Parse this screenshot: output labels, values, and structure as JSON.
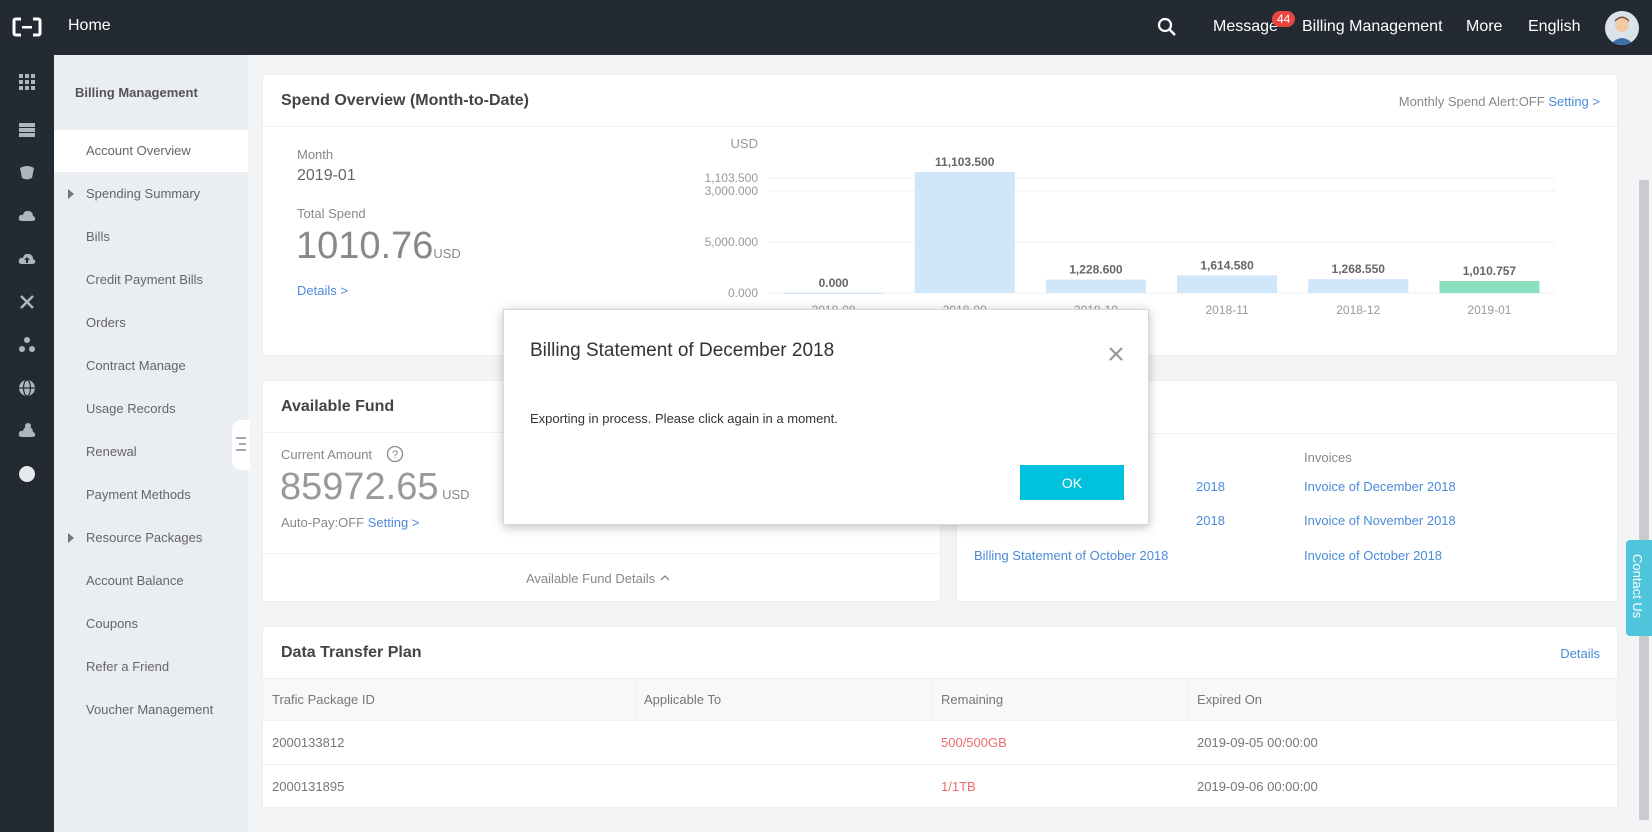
{
  "topbar": {
    "home": "Home",
    "message": "Message",
    "message_count": "44",
    "billing": "Billing Management",
    "more": "More",
    "language": "English"
  },
  "sidebar": {
    "title": "Billing Management",
    "items": [
      {
        "label": "Account Overview"
      },
      {
        "label": "Spending Summary"
      },
      {
        "label": "Bills"
      },
      {
        "label": "Credit Payment Bills"
      },
      {
        "label": "Orders"
      },
      {
        "label": "Contract Manage"
      },
      {
        "label": "Usage Records"
      },
      {
        "label": "Renewal"
      },
      {
        "label": "Payment Methods"
      },
      {
        "label": "Resource Packages"
      },
      {
        "label": "Account Balance"
      },
      {
        "label": "Coupons"
      },
      {
        "label": "Refer a Friend"
      },
      {
        "label": "Voucher Management"
      }
    ]
  },
  "spend": {
    "title": "Spend Overview (Month-to-Date)",
    "alert_label": "Monthly Spend Alert:OFF",
    "alert_setting": "Setting >",
    "month_label": "Month",
    "month_value": "2019-01",
    "total_label": "Total Spend",
    "total_value": "1010.76",
    "total_unit": "USD",
    "details": "Details >"
  },
  "chart_data": {
    "type": "bar",
    "ylabel": "USD",
    "y_ticks": [
      "0.000",
      "5,000.000",
      "3,000.000",
      "1,103.500"
    ],
    "categories": [
      "2018-08",
      "2018-09",
      "2018-10",
      "2018-11",
      "2018-12",
      "2019-01"
    ],
    "values": [
      0.0,
      11103.5,
      1228.6,
      1614.58,
      1268.55,
      1010.757
    ],
    "value_labels": [
      "0.000",
      "11,103.500",
      "1,228.600",
      "1,614.580",
      "1,268.550",
      "1,010.757"
    ],
    "colors": [
      "#cfe6fb",
      "#cfe6fb",
      "#cfe6fb",
      "#cfe6fb",
      "#cfe6fb",
      "#8be0c0"
    ],
    "ylim": [
      0,
      11103.5
    ]
  },
  "fund": {
    "title": "Available Fund",
    "current_label": "Current Amount",
    "amount": "85972.65",
    "unit": "USD",
    "autopay": "Auto-Pay:OFF",
    "setting": "Setting >",
    "details": "Available Fund Details"
  },
  "bills": {
    "invoices_header": "Invoices",
    "statements": [
      "Billing Statement of December 2018",
      "Billing Statement of November 2018",
      "Billing Statement of October 2018"
    ],
    "statement_visible": [
      "2018",
      "2018",
      "Billing Statement of October 2018"
    ],
    "invoices": [
      "Invoice of December 2018",
      "Invoice of November 2018",
      "Invoice of October 2018"
    ]
  },
  "transfer": {
    "title": "Data Transfer Plan",
    "details": "Details",
    "columns": [
      "Trafic Package ID",
      "Applicable To",
      "Remaining",
      "Expired On"
    ],
    "rows": [
      [
        "2000133812",
        "",
        "500/500GB",
        "2019-09-05 00:00:00"
      ],
      [
        "2000131895",
        "",
        "1/1TB",
        "2019-09-06 00:00:00"
      ]
    ]
  },
  "modal": {
    "title": "Billing Statement of December 2018",
    "body": "Exporting in process. Please click again in a moment.",
    "ok": "OK"
  },
  "contact": "Contact Us"
}
